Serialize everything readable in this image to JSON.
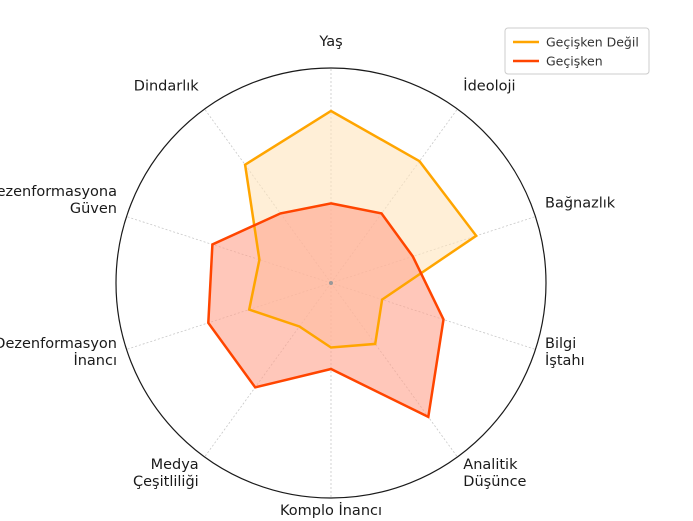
{
  "chart_data": {
    "type": "radar",
    "axes": [
      {
        "label": [
          "Yaş"
        ]
      },
      {
        "label": [
          "İdeoloji"
        ]
      },
      {
        "label": [
          "Bağnazlık"
        ]
      },
      {
        "label": [
          "Bilgi",
          "İştahı"
        ]
      },
      {
        "label": [
          "Analitik",
          "Düşünce"
        ]
      },
      {
        "label": [
          "Komplo İnancı"
        ]
      },
      {
        "label": [
          "Medya",
          "Çeşitliliği"
        ]
      },
      {
        "label": [
          "Dezenformasyon",
          "İnancı"
        ]
      },
      {
        "label": [
          "Dezenformasyona",
          "Güven"
        ]
      },
      {
        "label": [
          "Dindarlık"
        ]
      }
    ],
    "rmax": 1.0,
    "grid": true,
    "legend_position": "top-right",
    "series": [
      {
        "name": "Geçişken Değil",
        "color": "#FFA500",
        "fill": "#FFE4BC",
        "values": [
          0.8,
          0.7,
          0.71,
          0.25,
          0.35,
          0.3,
          0.25,
          0.4,
          0.35,
          0.68
        ]
      },
      {
        "name": "Geçişken",
        "color": "#FF4500",
        "fill": "#FFA28C",
        "values": [
          0.37,
          0.4,
          0.4,
          0.55,
          0.77,
          0.4,
          0.6,
          0.6,
          0.58,
          0.4
        ]
      }
    ]
  }
}
